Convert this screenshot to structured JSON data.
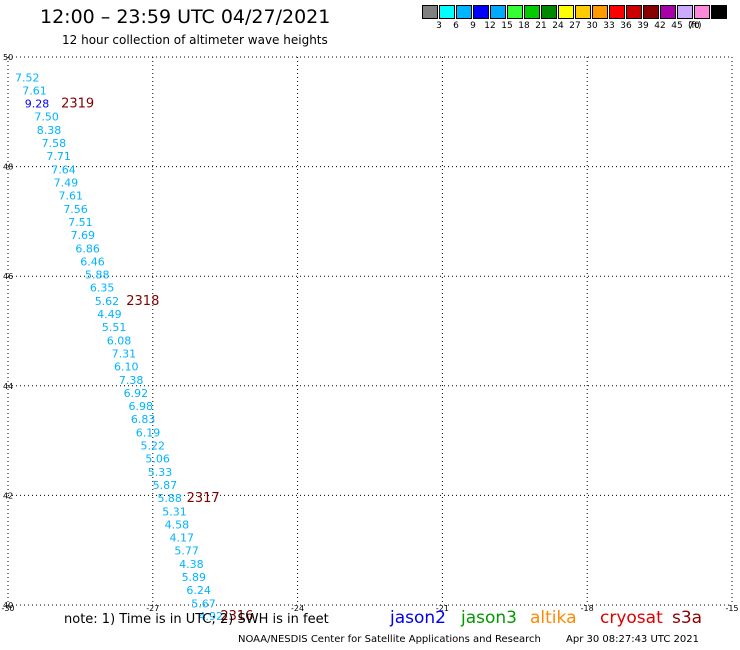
{
  "header": {
    "title": "12:00 – 23:59 UTC 04/27/2021",
    "subtitle": "12 hour collection of altimeter wave heights"
  },
  "colorbar": {
    "unit": "(ft)",
    "swatches": [
      {
        "color": "#808080",
        "label": ""
      },
      {
        "color": "#00ffff",
        "label": "3"
      },
      {
        "color": "#00b4ff",
        "label": "6"
      },
      {
        "color": "#0000ff",
        "label": "9"
      },
      {
        "color": "#00aaff",
        "label": "12"
      },
      {
        "color": "#33ff33",
        "label": "15"
      },
      {
        "color": "#00cc00",
        "label": "18"
      },
      {
        "color": "#008800",
        "label": "21"
      },
      {
        "color": "#ffff00",
        "label": "24"
      },
      {
        "color": "#ffcc00",
        "label": "27"
      },
      {
        "color": "#ff9900",
        "label": "30"
      },
      {
        "color": "#ff0000",
        "label": "33"
      },
      {
        "color": "#cc0000",
        "label": "36"
      },
      {
        "color": "#880000",
        "label": "39"
      },
      {
        "color": "#aa00aa",
        "label": "42"
      },
      {
        "color": "#ccaaff",
        "label": "45"
      },
      {
        "color": "#ff88dd",
        "label": "70"
      },
      {
        "color": "#000000",
        "label": ""
      }
    ]
  },
  "map_axes": {
    "lon_ticks": [
      -30,
      -27,
      -24,
      -21,
      -18,
      -15
    ],
    "lat_ticks": [
      50,
      48,
      46,
      44,
      42,
      40
    ],
    "lon_range": [
      -30,
      -15
    ],
    "lat_range": [
      40,
      50
    ]
  },
  "chart_data": {
    "type": "scatter",
    "points": [
      {
        "lon": -29.6,
        "lat": 49.63,
        "swh": "7.52"
      },
      {
        "lon": -29.45,
        "lat": 49.39,
        "swh": "7.61"
      },
      {
        "lon": -29.4,
        "lat": 49.15,
        "swh": "9.28"
      },
      {
        "lon": -29.2,
        "lat": 48.91,
        "swh": "7.50"
      },
      {
        "lon": -29.15,
        "lat": 48.67,
        "swh": "8.38"
      },
      {
        "lon": -29.05,
        "lat": 48.43,
        "swh": "7.58"
      },
      {
        "lon": -28.95,
        "lat": 48.19,
        "swh": "7.71"
      },
      {
        "lon": -28.85,
        "lat": 47.95,
        "swh": "7.64"
      },
      {
        "lon": -28.8,
        "lat": 47.71,
        "swh": "7.49"
      },
      {
        "lon": -28.7,
        "lat": 47.47,
        "swh": "7.61"
      },
      {
        "lon": -28.6,
        "lat": 47.23,
        "swh": "7.56"
      },
      {
        "lon": -28.5,
        "lat": 46.99,
        "swh": "7.51"
      },
      {
        "lon": -28.45,
        "lat": 46.75,
        "swh": "7.69"
      },
      {
        "lon": -28.35,
        "lat": 46.51,
        "swh": "6.86"
      },
      {
        "lon": -28.25,
        "lat": 46.27,
        "swh": "6.46"
      },
      {
        "lon": -28.15,
        "lat": 46.03,
        "swh": "5.88"
      },
      {
        "lon": -28.05,
        "lat": 45.79,
        "swh": "6.35"
      },
      {
        "lon": -27.95,
        "lat": 45.55,
        "swh": "5.62"
      },
      {
        "lon": -27.9,
        "lat": 45.31,
        "swh": "4.49"
      },
      {
        "lon": -27.8,
        "lat": 45.07,
        "swh": "5.51"
      },
      {
        "lon": -27.7,
        "lat": 44.83,
        "swh": "6.08"
      },
      {
        "lon": -27.6,
        "lat": 44.59,
        "swh": "7.31"
      },
      {
        "lon": -27.55,
        "lat": 44.35,
        "swh": "6.10"
      },
      {
        "lon": -27.45,
        "lat": 44.11,
        "swh": "7.38"
      },
      {
        "lon": -27.35,
        "lat": 43.87,
        "swh": "6.92"
      },
      {
        "lon": -27.25,
        "lat": 43.63,
        "swh": "6.98"
      },
      {
        "lon": -27.2,
        "lat": 43.39,
        "swh": "6.83"
      },
      {
        "lon": -27.1,
        "lat": 43.15,
        "swh": "6.19"
      },
      {
        "lon": -27.0,
        "lat": 42.91,
        "swh": "5.22"
      },
      {
        "lon": -26.9,
        "lat": 42.67,
        "swh": "5.06"
      },
      {
        "lon": -26.85,
        "lat": 42.43,
        "swh": "5.33"
      },
      {
        "lon": -26.75,
        "lat": 42.19,
        "swh": "5.87"
      },
      {
        "lon": -26.65,
        "lat": 41.95,
        "swh": "5.88"
      },
      {
        "lon": -26.55,
        "lat": 41.71,
        "swh": "5.31"
      },
      {
        "lon": -26.5,
        "lat": 41.47,
        "swh": "4.58"
      },
      {
        "lon": -26.4,
        "lat": 41.23,
        "swh": "4.17"
      },
      {
        "lon": -26.3,
        "lat": 40.99,
        "swh": "5.77"
      },
      {
        "lon": -26.2,
        "lat": 40.75,
        "swh": "4.38"
      },
      {
        "lon": -26.15,
        "lat": 40.51,
        "swh": "5.89"
      },
      {
        "lon": -26.05,
        "lat": 40.27,
        "swh": "6.24"
      },
      {
        "lon": -25.95,
        "lat": 40.03,
        "swh": "5.67"
      },
      {
        "lon": -25.8,
        "lat": 39.8,
        "swh": "4.92"
      }
    ],
    "pass_labels": [
      {
        "text": "2319",
        "lon": -28.9,
        "lat": 49.17
      },
      {
        "text": "2318",
        "lon": -27.55,
        "lat": 45.57
      },
      {
        "text": "2317",
        "lon": -26.3,
        "lat": 41.97
      },
      {
        "text": "2316",
        "lon": -25.6,
        "lat": 39.82
      }
    ],
    "colors": {
      "default_value": "#00b4ff",
      "highlight_value": "#0000ff",
      "pass_label": "#800000",
      "grid": "#000000"
    }
  },
  "footer": {
    "note": "note:  1) Time is in UTC;  2) SWH is in feet",
    "satellites": [
      {
        "name": "jason2",
        "color": "#0000ee"
      },
      {
        "name": "jason3",
        "color": "#009900"
      },
      {
        "name": "altika",
        "color": "#ff8800"
      },
      {
        "name": "cryosat",
        "color": "#dd0000"
      },
      {
        "name": "s3a",
        "color": "#880000"
      }
    ],
    "credit": "NOAA/NESDIS Center for Satellite Applications and Research",
    "timestamp": "Apr 30 08:27:43 UTC 2021"
  }
}
